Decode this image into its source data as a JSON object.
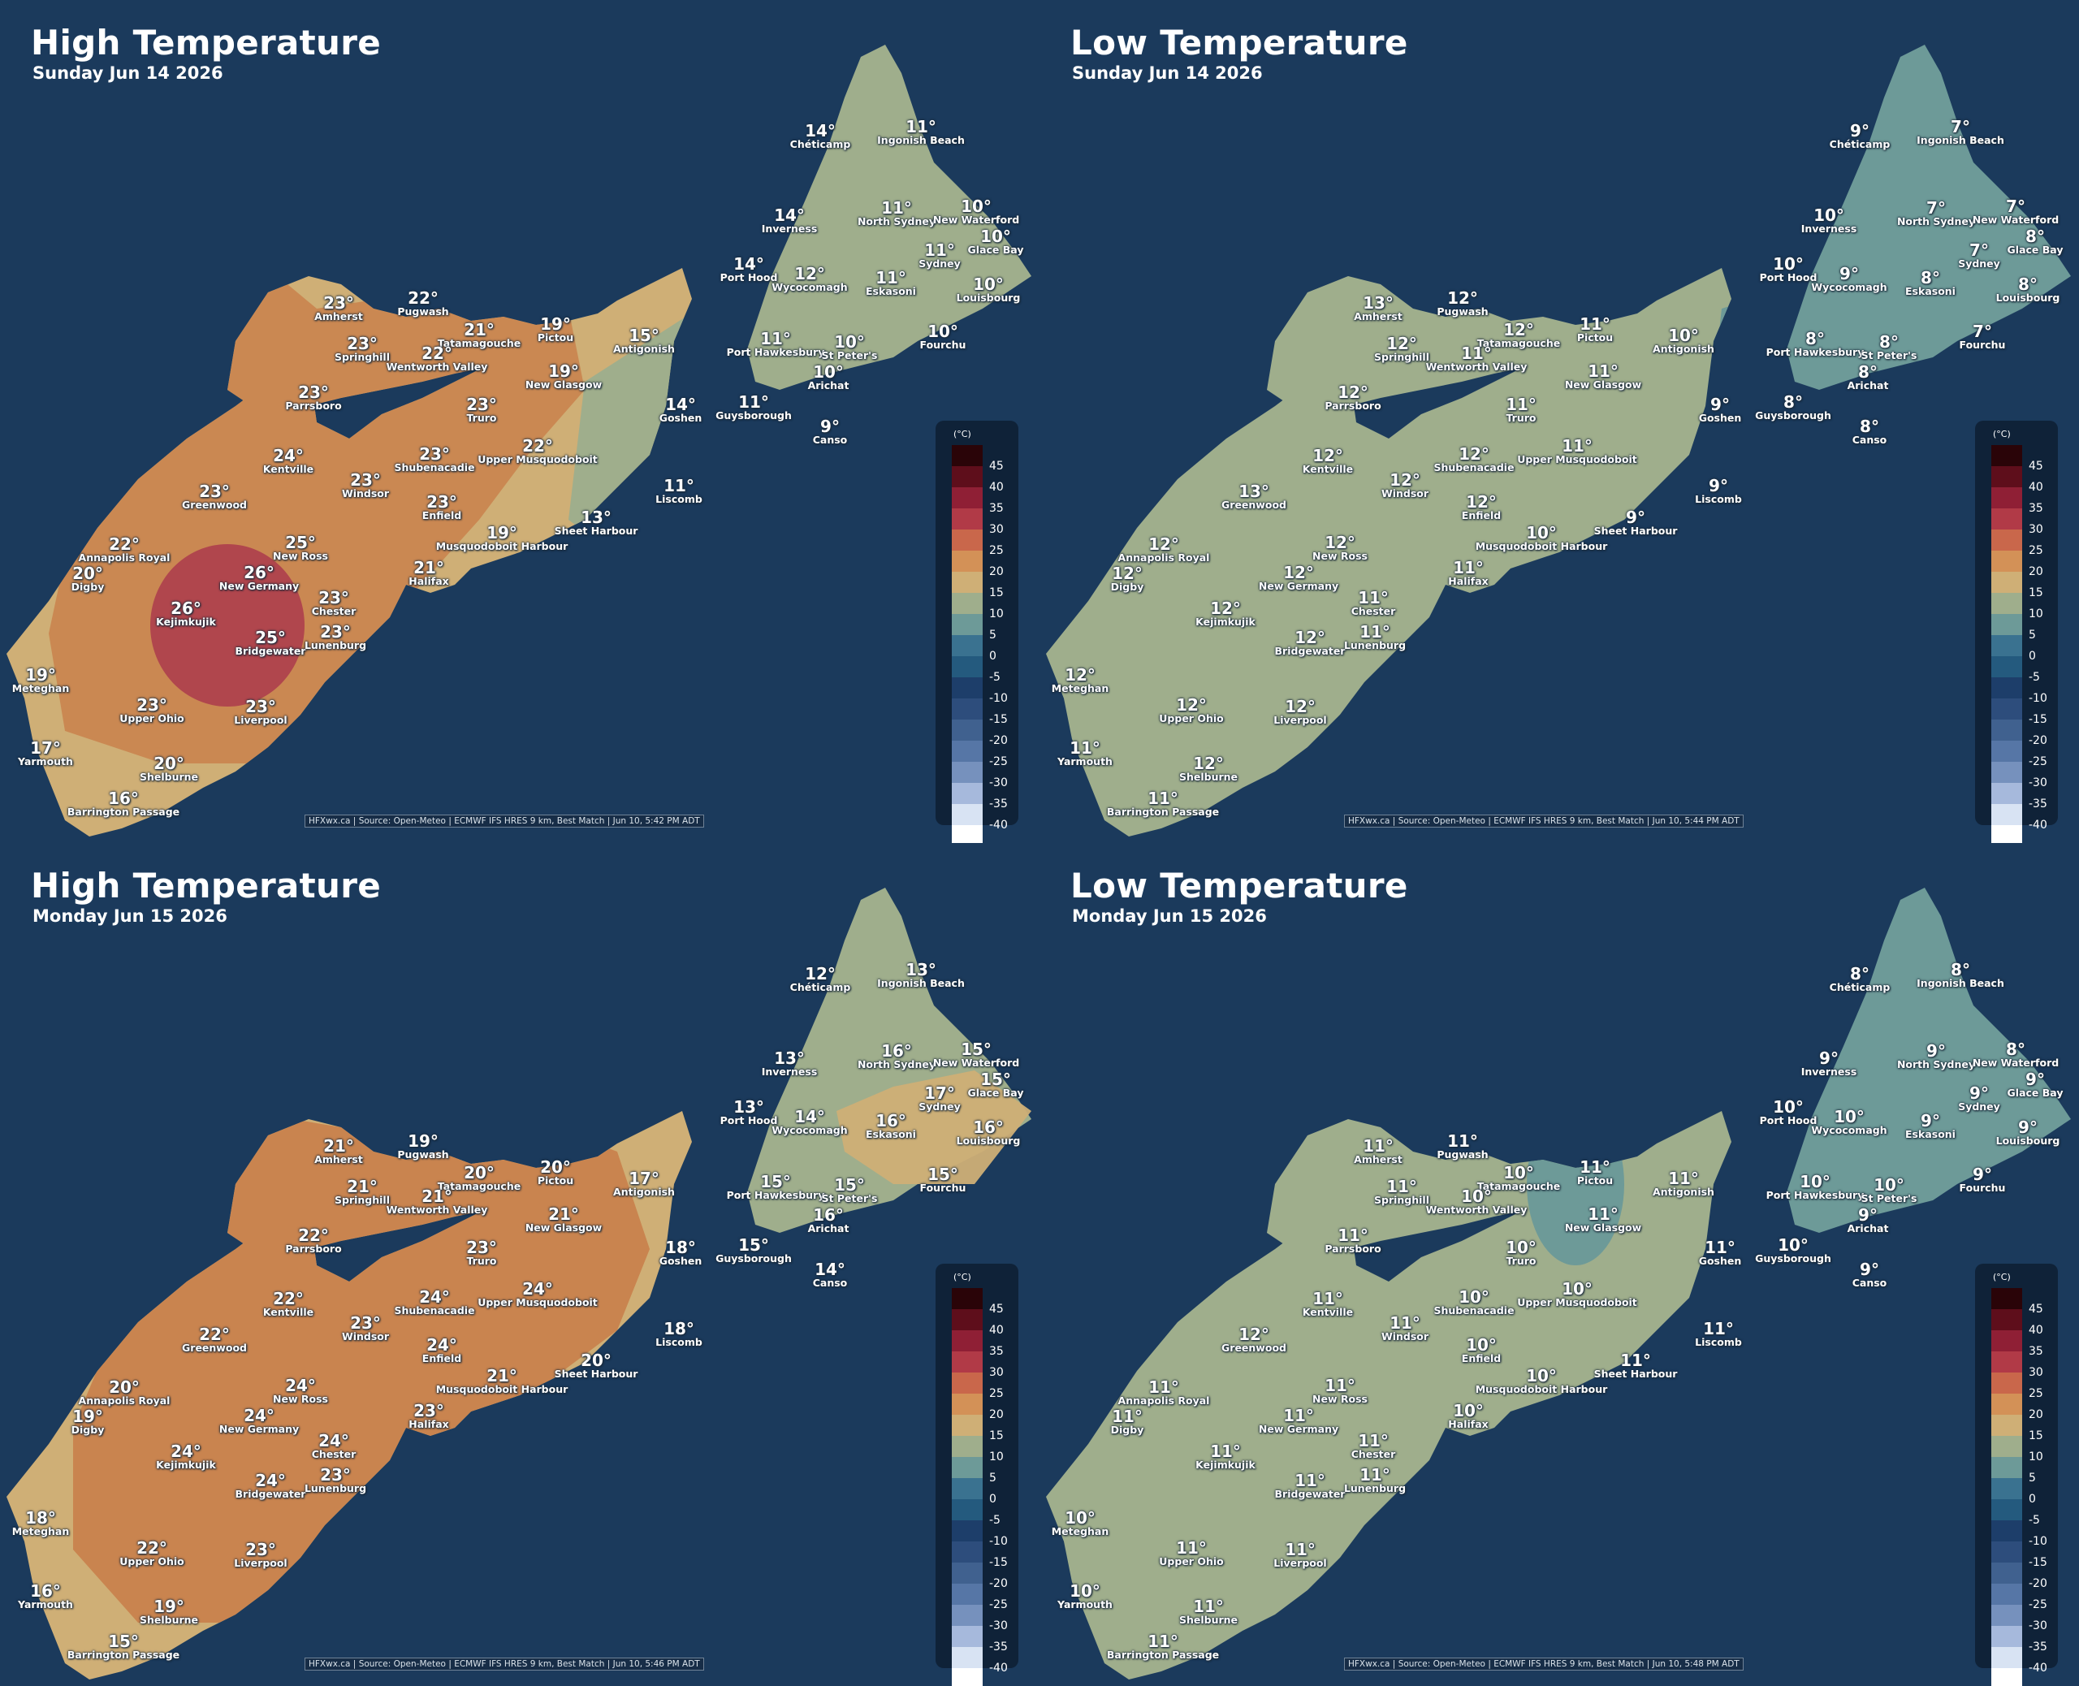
{
  "legend": {
    "unit": "(°C)",
    "ticks": [
      "45",
      "40",
      "35",
      "30",
      "25",
      "20",
      "15",
      "10",
      "5",
      "0",
      "-5",
      "-10",
      "-15",
      "-20",
      "-25",
      "-30",
      "-35",
      "-40"
    ],
    "colors": [
      "#2a0408",
      "#5e0e1b",
      "#8f1f35",
      "#b13a47",
      "#c9674b",
      "#d39157",
      "#cfaf76",
      "#9fae8c",
      "#6d9a98",
      "#3a7290",
      "#245a7e",
      "#1d3e6a",
      "#2d4d7c",
      "#40618f",
      "#5676a6",
      "#7691bd",
      "#a6b9dc",
      "#d8e3f3",
      "#ffffff"
    ]
  },
  "panels": [
    {
      "title": "High Temperature",
      "subtitle": "Sunday Jun 14 2026",
      "credit": "HFXwx.ca | Source: Open-Meteo | ECMWF IFS HRES 9 km, Best Match | Jun 10, 5:42 PM ADT",
      "cities": [
        {
          "name": "Chéticamp",
          "temp": "14°"
        },
        {
          "name": "Ingonish Beach",
          "temp": "11°"
        },
        {
          "name": "Inverness",
          "temp": "14°"
        },
        {
          "name": "North Sydney",
          "temp": "11°"
        },
        {
          "name": "New Waterford",
          "temp": "10°"
        },
        {
          "name": "Glace Bay",
          "temp": "10°"
        },
        {
          "name": "Sydney",
          "temp": "11°"
        },
        {
          "name": "Port Hood",
          "temp": "14°"
        },
        {
          "name": "Wycocomagh",
          "temp": "12°"
        },
        {
          "name": "Eskasoni",
          "temp": "11°"
        },
        {
          "name": "Louisbourg",
          "temp": "10°"
        },
        {
          "name": "Amherst",
          "temp": "23°"
        },
        {
          "name": "Pugwash",
          "temp": "22°"
        },
        {
          "name": "Tatamagouche",
          "temp": "21°"
        },
        {
          "name": "Pictou",
          "temp": "19°"
        },
        {
          "name": "Springhill",
          "temp": "23°"
        },
        {
          "name": "Wentworth Valley",
          "temp": "22°"
        },
        {
          "name": "Antigonish",
          "temp": "15°"
        },
        {
          "name": "Port Hawkesbury",
          "temp": "11°"
        },
        {
          "name": "St Peter's",
          "temp": "10°"
        },
        {
          "name": "Fourchu",
          "temp": "10°"
        },
        {
          "name": "New Glasgow",
          "temp": "19°"
        },
        {
          "name": "Arichat",
          "temp": "10°"
        },
        {
          "name": "Parrsboro",
          "temp": "23°"
        },
        {
          "name": "Truro",
          "temp": "23°"
        },
        {
          "name": "Goshen",
          "temp": "14°"
        },
        {
          "name": "Guysborough",
          "temp": "11°"
        },
        {
          "name": "Canso",
          "temp": "9°"
        },
        {
          "name": "Kentville",
          "temp": "24°"
        },
        {
          "name": "Shubenacadie",
          "temp": "23°"
        },
        {
          "name": "Upper Musquodoboit",
          "temp": "22°"
        },
        {
          "name": "Windsor",
          "temp": "23°"
        },
        {
          "name": "Greenwood",
          "temp": "23°"
        },
        {
          "name": "Enfield",
          "temp": "23°"
        },
        {
          "name": "Liscomb",
          "temp": "11°"
        },
        {
          "name": "Sheet Harbour",
          "temp": "13°"
        },
        {
          "name": "Annapolis Royal",
          "temp": "22°"
        },
        {
          "name": "New Ross",
          "temp": "25°"
        },
        {
          "name": "Musquodoboit Harbour",
          "temp": "19°"
        },
        {
          "name": "Digby",
          "temp": "20°"
        },
        {
          "name": "New Germany",
          "temp": "26°"
        },
        {
          "name": "Halifax",
          "temp": "21°"
        },
        {
          "name": "Chester",
          "temp": "23°"
        },
        {
          "name": "Kejimkujik",
          "temp": "26°"
        },
        {
          "name": "Bridgewater",
          "temp": "25°"
        },
        {
          "name": "Lunenburg",
          "temp": "23°"
        },
        {
          "name": "Meteghan",
          "temp": "19°"
        },
        {
          "name": "Upper Ohio",
          "temp": "23°"
        },
        {
          "name": "Liverpool",
          "temp": "23°"
        },
        {
          "name": "Yarmouth",
          "temp": "17°"
        },
        {
          "name": "Shelburne",
          "temp": "20°"
        },
        {
          "name": "Barrington Passage",
          "temp": "16°"
        }
      ]
    },
    {
      "title": "Low Temperature",
      "subtitle": "Sunday Jun 14 2026",
      "credit": "HFXwx.ca | Source: Open-Meteo | ECMWF IFS HRES 9 km, Best Match | Jun 10, 5:44 PM ADT",
      "cities": [
        {
          "name": "Chéticamp",
          "temp": "9°"
        },
        {
          "name": "Ingonish Beach",
          "temp": "7°"
        },
        {
          "name": "Inverness",
          "temp": "10°"
        },
        {
          "name": "North Sydney",
          "temp": "7°"
        },
        {
          "name": "New Waterford",
          "temp": "7°"
        },
        {
          "name": "Glace Bay",
          "temp": "8°"
        },
        {
          "name": "Sydney",
          "temp": "7°"
        },
        {
          "name": "Port Hood",
          "temp": "10°"
        },
        {
          "name": "Wycocomagh",
          "temp": "9°"
        },
        {
          "name": "Eskasoni",
          "temp": "8°"
        },
        {
          "name": "Louisbourg",
          "temp": "8°"
        },
        {
          "name": "Amherst",
          "temp": "13°"
        },
        {
          "name": "Pugwash",
          "temp": "12°"
        },
        {
          "name": "Tatamagouche",
          "temp": "12°"
        },
        {
          "name": "Pictou",
          "temp": "11°"
        },
        {
          "name": "Springhill",
          "temp": "12°"
        },
        {
          "name": "Wentworth Valley",
          "temp": "11°"
        },
        {
          "name": "Antigonish",
          "temp": "10°"
        },
        {
          "name": "Port Hawkesbury",
          "temp": "8°"
        },
        {
          "name": "St Peter's",
          "temp": "8°"
        },
        {
          "name": "Fourchu",
          "temp": "7°"
        },
        {
          "name": "New Glasgow",
          "temp": "11°"
        },
        {
          "name": "Arichat",
          "temp": "8°"
        },
        {
          "name": "Parrsboro",
          "temp": "12°"
        },
        {
          "name": "Truro",
          "temp": "11°"
        },
        {
          "name": "Goshen",
          "temp": "9°"
        },
        {
          "name": "Guysborough",
          "temp": "8°"
        },
        {
          "name": "Canso",
          "temp": "8°"
        },
        {
          "name": "Kentville",
          "temp": "12°"
        },
        {
          "name": "Shubenacadie",
          "temp": "12°"
        },
        {
          "name": "Upper Musquodoboit",
          "temp": "11°"
        },
        {
          "name": "Windsor",
          "temp": "12°"
        },
        {
          "name": "Greenwood",
          "temp": "13°"
        },
        {
          "name": "Enfield",
          "temp": "12°"
        },
        {
          "name": "Liscomb",
          "temp": "9°"
        },
        {
          "name": "Sheet Harbour",
          "temp": "9°"
        },
        {
          "name": "Annapolis Royal",
          "temp": "12°"
        },
        {
          "name": "New Ross",
          "temp": "12°"
        },
        {
          "name": "Musquodoboit Harbour",
          "temp": "10°"
        },
        {
          "name": "Digby",
          "temp": "12°"
        },
        {
          "name": "New Germany",
          "temp": "12°"
        },
        {
          "name": "Halifax",
          "temp": "11°"
        },
        {
          "name": "Chester",
          "temp": "11°"
        },
        {
          "name": "Kejimkujik",
          "temp": "12°"
        },
        {
          "name": "Bridgewater",
          "temp": "12°"
        },
        {
          "name": "Lunenburg",
          "temp": "11°"
        },
        {
          "name": "Meteghan",
          "temp": "12°"
        },
        {
          "name": "Upper Ohio",
          "temp": "12°"
        },
        {
          "name": "Liverpool",
          "temp": "12°"
        },
        {
          "name": "Yarmouth",
          "temp": "11°"
        },
        {
          "name": "Shelburne",
          "temp": "12°"
        },
        {
          "name": "Barrington Passage",
          "temp": "11°"
        }
      ]
    },
    {
      "title": "High Temperature",
      "subtitle": "Monday Jun 15 2026",
      "credit": "HFXwx.ca | Source: Open-Meteo | ECMWF IFS HRES 9 km, Best Match | Jun 10, 5:46 PM ADT",
      "cities": [
        {
          "name": "Chéticamp",
          "temp": "12°"
        },
        {
          "name": "Ingonish Beach",
          "temp": "13°"
        },
        {
          "name": "Inverness",
          "temp": "13°"
        },
        {
          "name": "North Sydney",
          "temp": "16°"
        },
        {
          "name": "New Waterford",
          "temp": "15°"
        },
        {
          "name": "Glace Bay",
          "temp": "15°"
        },
        {
          "name": "Sydney",
          "temp": "17°"
        },
        {
          "name": "Port Hood",
          "temp": "13°"
        },
        {
          "name": "Wycocomagh",
          "temp": "14°"
        },
        {
          "name": "Eskasoni",
          "temp": "16°"
        },
        {
          "name": "Louisbourg",
          "temp": "16°"
        },
        {
          "name": "Amherst",
          "temp": "21°"
        },
        {
          "name": "Pugwash",
          "temp": "19°"
        },
        {
          "name": "Tatamagouche",
          "temp": "20°"
        },
        {
          "name": "Pictou",
          "temp": "20°"
        },
        {
          "name": "Springhill",
          "temp": "21°"
        },
        {
          "name": "Wentworth Valley",
          "temp": "21°"
        },
        {
          "name": "Antigonish",
          "temp": "17°"
        },
        {
          "name": "Port Hawkesbury",
          "temp": "15°"
        },
        {
          "name": "St Peter's",
          "temp": "15°"
        },
        {
          "name": "Fourchu",
          "temp": "15°"
        },
        {
          "name": "New Glasgow",
          "temp": "21°"
        },
        {
          "name": "Arichat",
          "temp": "16°"
        },
        {
          "name": "Parrsboro",
          "temp": "22°"
        },
        {
          "name": "Truro",
          "temp": "23°"
        },
        {
          "name": "Goshen",
          "temp": "18°"
        },
        {
          "name": "Guysborough",
          "temp": "15°"
        },
        {
          "name": "Canso",
          "temp": "14°"
        },
        {
          "name": "Kentville",
          "temp": "22°"
        },
        {
          "name": "Shubenacadie",
          "temp": "24°"
        },
        {
          "name": "Upper Musquodoboit",
          "temp": "24°"
        },
        {
          "name": "Windsor",
          "temp": "23°"
        },
        {
          "name": "Greenwood",
          "temp": "22°"
        },
        {
          "name": "Enfield",
          "temp": "24°"
        },
        {
          "name": "Liscomb",
          "temp": "18°"
        },
        {
          "name": "Sheet Harbour",
          "temp": "20°"
        },
        {
          "name": "Annapolis Royal",
          "temp": "20°"
        },
        {
          "name": "New Ross",
          "temp": "24°"
        },
        {
          "name": "Musquodoboit Harbour",
          "temp": "21°"
        },
        {
          "name": "Digby",
          "temp": "19°"
        },
        {
          "name": "New Germany",
          "temp": "24°"
        },
        {
          "name": "Halifax",
          "temp": "23°"
        },
        {
          "name": "Chester",
          "temp": "24°"
        },
        {
          "name": "Kejimkujik",
          "temp": "24°"
        },
        {
          "name": "Bridgewater",
          "temp": "24°"
        },
        {
          "name": "Lunenburg",
          "temp": "23°"
        },
        {
          "name": "Meteghan",
          "temp": "18°"
        },
        {
          "name": "Upper Ohio",
          "temp": "22°"
        },
        {
          "name": "Liverpool",
          "temp": "23°"
        },
        {
          "name": "Yarmouth",
          "temp": "16°"
        },
        {
          "name": "Shelburne",
          "temp": "19°"
        },
        {
          "name": "Barrington Passage",
          "temp": "15°"
        }
      ]
    },
    {
      "title": "Low Temperature",
      "subtitle": "Monday Jun 15 2026",
      "credit": "HFXwx.ca | Source: Open-Meteo | ECMWF IFS HRES 9 km, Best Match | Jun 10, 5:48 PM ADT",
      "cities": [
        {
          "name": "Chéticamp",
          "temp": "8°"
        },
        {
          "name": "Ingonish Beach",
          "temp": "8°"
        },
        {
          "name": "Inverness",
          "temp": "9°"
        },
        {
          "name": "North Sydney",
          "temp": "9°"
        },
        {
          "name": "New Waterford",
          "temp": "8°"
        },
        {
          "name": "Glace Bay",
          "temp": "9°"
        },
        {
          "name": "Sydney",
          "temp": "9°"
        },
        {
          "name": "Port Hood",
          "temp": "10°"
        },
        {
          "name": "Wycocomagh",
          "temp": "10°"
        },
        {
          "name": "Eskasoni",
          "temp": "9°"
        },
        {
          "name": "Louisbourg",
          "temp": "9°"
        },
        {
          "name": "Amherst",
          "temp": "11°"
        },
        {
          "name": "Pugwash",
          "temp": "11°"
        },
        {
          "name": "Tatamagouche",
          "temp": "10°"
        },
        {
          "name": "Pictou",
          "temp": "11°"
        },
        {
          "name": "Springhill",
          "temp": "11°"
        },
        {
          "name": "Wentworth Valley",
          "temp": "10°"
        },
        {
          "name": "Antigonish",
          "temp": "11°"
        },
        {
          "name": "Port Hawkesbury",
          "temp": "10°"
        },
        {
          "name": "St Peter's",
          "temp": "10°"
        },
        {
          "name": "Fourchu",
          "temp": "9°"
        },
        {
          "name": "New Glasgow",
          "temp": "11°"
        },
        {
          "name": "Arichat",
          "temp": "9°"
        },
        {
          "name": "Parrsboro",
          "temp": "11°"
        },
        {
          "name": "Truro",
          "temp": "10°"
        },
        {
          "name": "Goshen",
          "temp": "11°"
        },
        {
          "name": "Guysborough",
          "temp": "10°"
        },
        {
          "name": "Canso",
          "temp": "9°"
        },
        {
          "name": "Kentville",
          "temp": "11°"
        },
        {
          "name": "Shubenacadie",
          "temp": "10°"
        },
        {
          "name": "Upper Musquodoboit",
          "temp": "10°"
        },
        {
          "name": "Windsor",
          "temp": "11°"
        },
        {
          "name": "Greenwood",
          "temp": "12°"
        },
        {
          "name": "Enfield",
          "temp": "10°"
        },
        {
          "name": "Liscomb",
          "temp": "11°"
        },
        {
          "name": "Sheet Harbour",
          "temp": "11°"
        },
        {
          "name": "Annapolis Royal",
          "temp": "11°"
        },
        {
          "name": "New Ross",
          "temp": "11°"
        },
        {
          "name": "Musquodoboit Harbour",
          "temp": "10°"
        },
        {
          "name": "Digby",
          "temp": "11°"
        },
        {
          "name": "New Germany",
          "temp": "11°"
        },
        {
          "name": "Halifax",
          "temp": "10°"
        },
        {
          "name": "Chester",
          "temp": "11°"
        },
        {
          "name": "Kejimkujik",
          "temp": "11°"
        },
        {
          "name": "Bridgewater",
          "temp": "11°"
        },
        {
          "name": "Lunenburg",
          "temp": "11°"
        },
        {
          "name": "Meteghan",
          "temp": "10°"
        },
        {
          "name": "Upper Ohio",
          "temp": "11°"
        },
        {
          "name": "Liverpool",
          "temp": "11°"
        },
        {
          "name": "Yarmouth",
          "temp": "10°"
        },
        {
          "name": "Shelburne",
          "temp": "11°"
        },
        {
          "name": "Barrington Passage",
          "temp": "11°"
        }
      ]
    }
  ]
}
